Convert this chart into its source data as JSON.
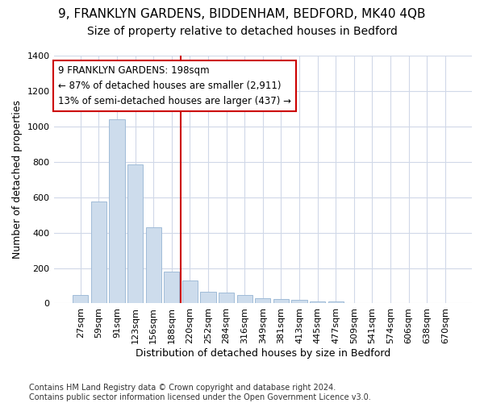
{
  "title": "9, FRANKLYN GARDENS, BIDDENHAM, BEDFORD, MK40 4QB",
  "subtitle": "Size of property relative to detached houses in Bedford",
  "xlabel": "Distribution of detached houses by size in Bedford",
  "ylabel": "Number of detached properties",
  "categories": [
    "27sqm",
    "59sqm",
    "91sqm",
    "123sqm",
    "156sqm",
    "188sqm",
    "220sqm",
    "252sqm",
    "284sqm",
    "316sqm",
    "349sqm",
    "381sqm",
    "413sqm",
    "445sqm",
    "477sqm",
    "509sqm",
    "541sqm",
    "574sqm",
    "606sqm",
    "638sqm",
    "670sqm"
  ],
  "values": [
    47,
    578,
    1040,
    787,
    430,
    180,
    128,
    65,
    63,
    47,
    29,
    27,
    20,
    12,
    10,
    0,
    0,
    0,
    0,
    0,
    0
  ],
  "bar_color": "#cddcec",
  "bar_edge_color": "#a0bcd8",
  "vline_x_index": 5,
  "vline_color": "#cc0000",
  "annotation_line1": "9 FRANKLYN GARDENS: 198sqm",
  "annotation_line2": "← 87% of detached houses are smaller (2,911)",
  "annotation_line3": "13% of semi-detached houses are larger (437) →",
  "annotation_box_color": "#ffffff",
  "annotation_box_edge": "#cc0000",
  "ylim": [
    0,
    1400
  ],
  "yticks": [
    0,
    200,
    400,
    600,
    800,
    1000,
    1200,
    1400
  ],
  "footer": "Contains HM Land Registry data © Crown copyright and database right 2024.\nContains public sector information licensed under the Open Government Licence v3.0.",
  "bg_color": "#ffffff",
  "plot_bg_color": "#ffffff",
  "grid_color": "#d0d8e8",
  "title_fontsize": 11,
  "subtitle_fontsize": 10,
  "xlabel_fontsize": 9,
  "ylabel_fontsize": 9,
  "tick_fontsize": 8,
  "annotation_fontsize": 8.5,
  "footer_fontsize": 7
}
